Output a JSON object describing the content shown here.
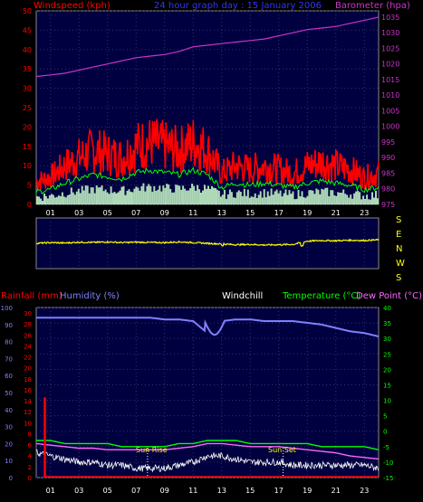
{
  "panel1": {
    "header": {
      "left": "Windspeed (kph)",
      "center": "24 hour graph day : 15 January 2006",
      "right": "Barometer (hpa)"
    },
    "left_ticks": [
      "0",
      "5",
      "10",
      "15",
      "20",
      "25",
      "30",
      "35",
      "40",
      "45",
      "50"
    ],
    "right_ticks": [
      "975",
      "980",
      "985",
      "990",
      "995",
      "1000",
      "1005",
      "1010",
      "1015",
      "1020",
      "1025",
      "1030",
      "1035"
    ],
    "x_ticks": [
      "01",
      "03",
      "05",
      "07",
      "09",
      "11",
      "13",
      "15",
      "17",
      "19",
      "21",
      "23"
    ]
  },
  "panel2": {
    "dir_labels": [
      "S",
      "E",
      "N",
      "W",
      "S"
    ],
    "x_ticks": [
      "01",
      "03",
      "05",
      "07",
      "09",
      "11",
      "13",
      "15",
      "17",
      "19",
      "21",
      "23"
    ]
  },
  "panel3": {
    "header": {
      "rain": "Rainfall (mm)",
      "hum": "Humidity (%)",
      "wc": "Windchill",
      "temp": "Temperature (°C)",
      "dew": "Dew Point (°C)"
    },
    "left_hum_ticks": [
      "0",
      "10",
      "20",
      "30",
      "40",
      "50",
      "60",
      "70",
      "80",
      "90",
      "100"
    ],
    "left_rain_ticks": [
      "0",
      "2",
      "4",
      "6",
      "8",
      "10",
      "12",
      "14",
      "16",
      "18",
      "20",
      "22",
      "24",
      "26",
      "28",
      "30"
    ],
    "right_ticks": [
      "-15",
      "-10",
      "-5",
      "0",
      "5",
      "10",
      "15",
      "20",
      "25",
      "30",
      "35",
      "40"
    ],
    "x_ticks": [
      "01",
      "03",
      "05",
      "07",
      "09",
      "11",
      "13",
      "15",
      "17",
      "19",
      "21",
      "23"
    ],
    "sunrise": "Sun Rise",
    "sunset": "Sun Set"
  },
  "colors": {
    "wind": "#ff0000",
    "gust": "#00ff00",
    "avg": "#ccffcc",
    "baro": "#cc33cc",
    "dir": "#ffff00",
    "hum": "#8080ff",
    "temp": "#00ff00",
    "dew": "#ff66ff",
    "rain": "#ff0000",
    "chill": "#ffffff",
    "panel_bg": "#000040"
  },
  "chart_data": [
    {
      "type": "line",
      "title": "24 hour graph day : 15 January 2006",
      "x": [
        "00",
        "01",
        "02",
        "03",
        "04",
        "05",
        "06",
        "07",
        "08",
        "09",
        "10",
        "11",
        "12",
        "13",
        "14",
        "15",
        "16",
        "17",
        "18",
        "19",
        "20",
        "21",
        "22",
        "23",
        "24"
      ],
      "ylim": [
        0,
        50
      ],
      "y2lim": [
        975,
        1037
      ],
      "series": [
        {
          "name": "Windspeed (kph)",
          "axis": "left",
          "values": [
            6,
            7,
            10,
            12,
            14,
            13,
            12,
            15,
            16,
            15,
            14,
            16,
            14,
            8,
            10,
            9,
            10,
            9,
            8,
            10,
            11,
            10,
            9,
            7,
            8
          ]
        },
        {
          "name": "Barometer (hpa)",
          "axis": "right",
          "values": [
            1016,
            1016.5,
            1017,
            1018,
            1019,
            1020,
            1021,
            1022,
            1022.5,
            1023,
            1024,
            1025.5,
            1026,
            1026.5,
            1027,
            1027.5,
            1028,
            1029,
            1030,
            1031,
            1031.5,
            1032,
            1033,
            1034,
            1035
          ]
        }
      ]
    },
    {
      "type": "line",
      "x": [
        "00",
        "01",
        "02",
        "03",
        "04",
        "05",
        "06",
        "07",
        "08",
        "09",
        "10",
        "11",
        "12",
        "13",
        "14",
        "15",
        "16",
        "17",
        "18",
        "19",
        "20",
        "21",
        "22",
        "23",
        "24"
      ],
      "ylim": [
        0,
        360
      ],
      "series": [
        {
          "name": "Wind direction",
          "values": [
            180,
            185,
            182,
            188,
            186,
            190,
            185,
            188,
            186,
            185,
            190,
            185,
            180,
            175,
            170,
            172,
            168,
            170,
            172,
            195,
            200,
            198,
            202,
            200,
            205
          ]
        }
      ]
    },
    {
      "type": "line",
      "x": [
        "00",
        "01",
        "02",
        "03",
        "04",
        "05",
        "06",
        "07",
        "08",
        "09",
        "10",
        "11",
        "12",
        "13",
        "14",
        "15",
        "16",
        "17",
        "18",
        "19",
        "20",
        "21",
        "22",
        "23",
        "24"
      ],
      "ylim": [
        0,
        100
      ],
      "y2lim": [
        -15,
        40
      ],
      "series": [
        {
          "name": "Humidity (%)",
          "axis": "left",
          "values": [
            94,
            94,
            94,
            94,
            94,
            94,
            94,
            94,
            94,
            93,
            93,
            92,
            85,
            92,
            93,
            93,
            92,
            92,
            92,
            91,
            90,
            88,
            86,
            85,
            83
          ]
        },
        {
          "name": "Temperature (°C)",
          "axis": "right",
          "values": [
            -3,
            -3,
            -4,
            -4,
            -4,
            -4,
            -5,
            -5,
            -5,
            -5,
            -4,
            -4,
            -3,
            -3,
            -3,
            -4,
            -4,
            -4,
            -4,
            -4,
            -5,
            -5,
            -5,
            -5,
            -6
          ]
        },
        {
          "name": "Dew Point (°C)",
          "axis": "right",
          "values": [
            -4,
            -4.5,
            -5,
            -5.5,
            -5.5,
            -6,
            -6,
            -6,
            -6,
            -6,
            -5.5,
            -5,
            -4,
            -4,
            -4.5,
            -5,
            -5,
            -5,
            -5.5,
            -6,
            -6.5,
            -7,
            -8,
            -8.5,
            -9
          ]
        },
        {
          "name": "Windchill",
          "axis": "right",
          "values": [
            -7,
            -8,
            -9,
            -10,
            -10,
            -11,
            -11,
            -12,
            -12,
            -12,
            -11,
            -10,
            -8,
            -8,
            -9,
            -10,
            -10,
            -10,
            -11,
            -11,
            -11,
            -11,
            -11,
            -11,
            -12
          ]
        },
        {
          "name": "Rainfall (mm)",
          "axis": "left",
          "values": [
            14.5,
            0,
            0,
            0,
            0,
            0,
            0,
            0,
            0,
            0,
            0,
            0,
            0,
            0,
            0,
            0,
            0,
            0,
            0,
            0,
            0,
            0,
            0,
            0,
            0
          ]
        }
      ]
    }
  ]
}
